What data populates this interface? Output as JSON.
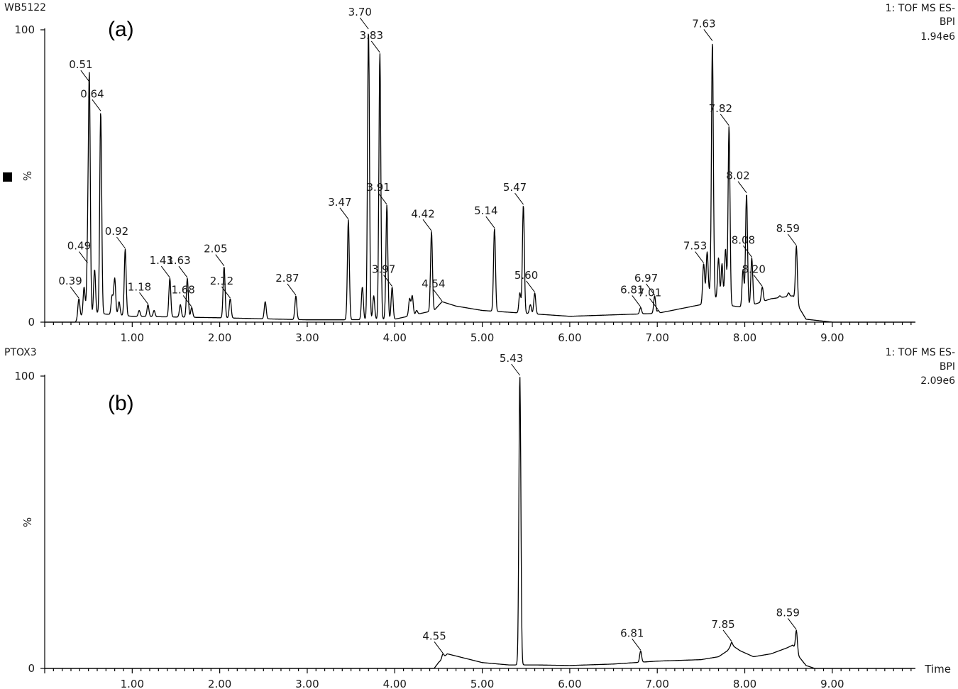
{
  "chart_data": [
    {
      "type": "line",
      "panel_label": "(a)",
      "sample": "WB5122",
      "header_lines": [
        "1: TOF MS ES-",
        "BPI",
        "1.94e6"
      ],
      "ylabel": "%",
      "xlabel": "",
      "xlim": [
        0,
        9.95
      ],
      "ylim": [
        0,
        100
      ],
      "y_ticks": [
        "0",
        "100"
      ],
      "x_ticks": [
        "1.00",
        "2.00",
        "3.00",
        "4.00",
        "5.00",
        "6.00",
        "7.00",
        "8.00",
        "9.00"
      ],
      "x_tick_values": [
        1,
        2,
        3,
        4,
        5,
        6,
        7,
        8,
        9
      ],
      "baseline": [
        [
          0.0,
          0
        ],
        [
          0.35,
          0
        ],
        [
          0.4,
          2
        ],
        [
          0.6,
          3
        ],
        [
          1.0,
          2
        ],
        [
          2.0,
          1.5
        ],
        [
          3.0,
          0.8
        ],
        [
          3.4,
          0.8
        ],
        [
          4.0,
          1
        ],
        [
          4.45,
          4
        ],
        [
          4.54,
          7
        ],
        [
          4.7,
          5.5
        ],
        [
          5.0,
          4
        ],
        [
          5.5,
          3
        ],
        [
          6.0,
          2
        ],
        [
          6.5,
          2.5
        ],
        [
          7.0,
          3
        ],
        [
          7.5,
          6
        ],
        [
          7.6,
          10
        ],
        [
          7.75,
          6
        ],
        [
          8.0,
          5
        ],
        [
          8.3,
          8
        ],
        [
          8.55,
          9
        ],
        [
          8.6,
          6
        ],
        [
          8.7,
          1
        ],
        [
          9.0,
          0
        ],
        [
          9.95,
          0
        ]
      ],
      "peaks": [
        {
          "rt": 0.39,
          "label": "0.39",
          "intensity": 8
        },
        {
          "rt": 0.49,
          "label": "0.49",
          "intensity": 20
        },
        {
          "rt": 0.51,
          "label": "0.51",
          "intensity": 82
        },
        {
          "rt": 0.64,
          "label": "0.64",
          "intensity": 72
        },
        {
          "rt": 0.92,
          "label": "0.92",
          "intensity": 25
        },
        {
          "rt": 1.18,
          "label": "1.18",
          "intensity": 6
        },
        {
          "rt": 1.43,
          "label": "1.43",
          "intensity": 15
        },
        {
          "rt": 1.63,
          "label": "1.63",
          "intensity": 15
        },
        {
          "rt": 1.68,
          "label": "1.68",
          "intensity": 5
        },
        {
          "rt": 2.05,
          "label": "2.05",
          "intensity": 19
        },
        {
          "rt": 2.12,
          "label": "2.12",
          "intensity": 8
        },
        {
          "rt": 2.87,
          "label": "2.87",
          "intensity": 9
        },
        {
          "rt": 3.47,
          "label": "3.47",
          "intensity": 35
        },
        {
          "rt": 3.7,
          "label": "3.70",
          "intensity": 100
        },
        {
          "rt": 3.83,
          "label": "3.83",
          "intensity": 92
        },
        {
          "rt": 3.91,
          "label": "3.91",
          "intensity": 40
        },
        {
          "rt": 3.97,
          "label": "3.97",
          "intensity": 12
        },
        {
          "rt": 4.42,
          "label": "4.42",
          "intensity": 31
        },
        {
          "rt": 4.54,
          "label": "4.54",
          "intensity": 7
        },
        {
          "rt": 5.14,
          "label": "5.14",
          "intensity": 32
        },
        {
          "rt": 5.47,
          "label": "5.47",
          "intensity": 40
        },
        {
          "rt": 5.6,
          "label": "5.60",
          "intensity": 10
        },
        {
          "rt": 6.81,
          "label": "6.81",
          "intensity": 5
        },
        {
          "rt": 6.97,
          "label": "6.97",
          "intensity": 9
        },
        {
          "rt": 7.01,
          "label": "7.01",
          "intensity": 4
        },
        {
          "rt": 7.53,
          "label": "7.53",
          "intensity": 20
        },
        {
          "rt": 7.63,
          "label": "7.63",
          "intensity": 96
        },
        {
          "rt": 7.82,
          "label": "7.82",
          "intensity": 67
        },
        {
          "rt": 8.02,
          "label": "8.02",
          "intensity": 44
        },
        {
          "rt": 8.08,
          "label": "8.08",
          "intensity": 22
        },
        {
          "rt": 8.2,
          "label": "8.20",
          "intensity": 12
        },
        {
          "rt": 8.59,
          "label": "8.59",
          "intensity": 26
        }
      ],
      "minor_peaks": [
        {
          "rt": 0.45,
          "intensity": 12
        },
        {
          "rt": 0.57,
          "intensity": 18
        },
        {
          "rt": 0.77,
          "intensity": 9
        },
        {
          "rt": 0.8,
          "intensity": 15
        },
        {
          "rt": 0.85,
          "intensity": 7
        },
        {
          "rt": 1.08,
          "intensity": 4
        },
        {
          "rt": 1.25,
          "intensity": 4
        },
        {
          "rt": 1.55,
          "intensity": 6
        },
        {
          "rt": 2.52,
          "intensity": 7
        },
        {
          "rt": 3.63,
          "intensity": 12
        },
        {
          "rt": 3.76,
          "intensity": 9
        },
        {
          "rt": 4.17,
          "intensity": 8
        },
        {
          "rt": 4.2,
          "intensity": 9
        },
        {
          "rt": 4.25,
          "intensity": 4
        },
        {
          "rt": 4.35,
          "intensity": 3
        },
        {
          "rt": 5.43,
          "intensity": 10
        },
        {
          "rt": 5.55,
          "intensity": 6
        },
        {
          "rt": 7.35,
          "intensity": 5
        },
        {
          "rt": 7.57,
          "intensity": 24
        },
        {
          "rt": 7.7,
          "intensity": 22
        },
        {
          "rt": 7.74,
          "intensity": 20
        },
        {
          "rt": 7.78,
          "intensity": 25
        },
        {
          "rt": 7.98,
          "intensity": 18
        },
        {
          "rt": 8.4,
          "intensity": 9
        },
        {
          "rt": 8.5,
          "intensity": 10
        }
      ]
    },
    {
      "type": "line",
      "panel_label": "(b)",
      "sample": "PTOX3",
      "header_lines": [
        "1: TOF MS ES-",
        "BPI",
        "2.09e6"
      ],
      "ylabel": "%",
      "xlabel": "Time",
      "xlim": [
        0,
        9.95
      ],
      "ylim": [
        0,
        100
      ],
      "y_ticks": [
        "0",
        "100"
      ],
      "x_ticks": [
        "1.00",
        "2.00",
        "3.00",
        "4.00",
        "5.00",
        "6.00",
        "7.00",
        "8.00",
        "9.00"
      ],
      "x_tick_values": [
        1,
        2,
        3,
        4,
        5,
        6,
        7,
        8,
        9
      ],
      "baseline": [
        [
          0.0,
          0
        ],
        [
          4.45,
          0
        ],
        [
          4.5,
          2
        ],
        [
          4.6,
          5
        ],
        [
          4.8,
          3.5
        ],
        [
          5.0,
          2
        ],
        [
          5.3,
          1.2
        ],
        [
          5.6,
          1.2
        ],
        [
          6.0,
          1
        ],
        [
          6.5,
          1.5
        ],
        [
          7.0,
          2.5
        ],
        [
          7.5,
          3
        ],
        [
          7.7,
          4
        ],
        [
          7.8,
          6
        ],
        [
          7.85,
          8
        ],
        [
          7.95,
          6
        ],
        [
          8.1,
          4
        ],
        [
          8.3,
          5
        ],
        [
          8.48,
          7
        ],
        [
          8.55,
          8
        ],
        [
          8.62,
          4
        ],
        [
          8.7,
          1
        ],
        [
          8.8,
          0
        ],
        [
          9.95,
          0
        ]
      ],
      "peaks": [
        {
          "rt": 4.55,
          "label": "4.55",
          "intensity": 5
        },
        {
          "rt": 5.43,
          "label": "5.43",
          "intensity": 100
        },
        {
          "rt": 6.81,
          "label": "6.81",
          "intensity": 6
        },
        {
          "rt": 7.85,
          "label": "7.85",
          "intensity": 9
        },
        {
          "rt": 8.59,
          "label": "8.59",
          "intensity": 13
        }
      ],
      "minor_peaks": []
    }
  ]
}
